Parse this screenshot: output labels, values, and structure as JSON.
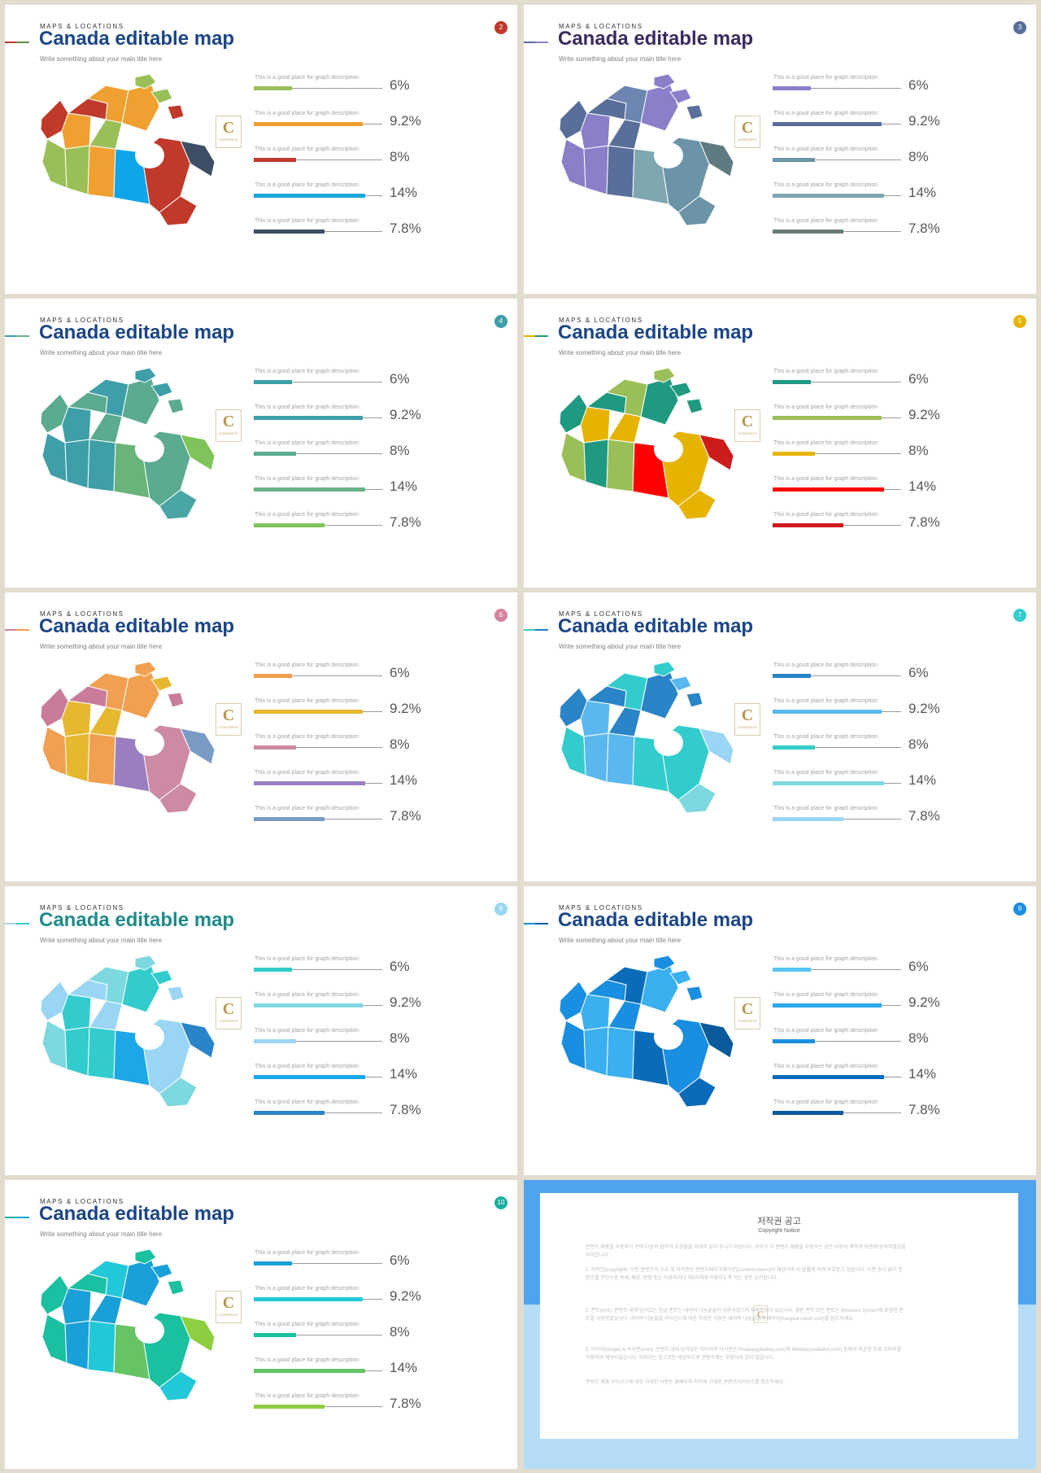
{
  "slides": [
    {
      "kicker": "MAPS & LOCATIONS",
      "title": "Canada editable map",
      "subtitle": "Write something about your main title here",
      "page": "2",
      "accent": "#c0392b",
      "accent2": "#5b8f3c",
      "title_color": "#1b4586",
      "logo_letter": "C",
      "logo_word": "CONTENTS",
      "region_colors": [
        "#c0392b",
        "#f0a030",
        "#9bbf58",
        "#9bbf58",
        "#c0392b",
        "#f0a030",
        "#9bbf58",
        "#f0a030",
        "#0ea5e9",
        "#c0392b",
        "#3e4e66",
        "#f0a030",
        "#c0392b"
      ],
      "bars": [
        {
          "desc": "This is a good place for graph description",
          "value": "6%",
          "fraction": 0.3,
          "color": "#9bbf58"
        },
        {
          "desc": "This is a good place for graph description",
          "value": "9.2%",
          "fraction": 0.85,
          "color": "#f0a030"
        },
        {
          "desc": "This is a good place for graph description",
          "value": "8%",
          "fraction": 0.33,
          "color": "#c0392b"
        },
        {
          "desc": "This is a good place for graph description",
          "value": "14%",
          "fraction": 0.87,
          "color": "#1ba7d8"
        },
        {
          "desc": "This is a good place for graph description",
          "value": "7.8%",
          "fraction": 0.55,
          "color": "#3e4e66"
        }
      ]
    },
    {
      "kicker": "MAPS & LOCATIONS",
      "title": "Canada editable map",
      "subtitle": "Write something about your main title here",
      "page": "3",
      "accent": "#5a6e9a",
      "accent2": "#8a7fc8",
      "title_color": "#3b2a5e",
      "logo_letter": "C",
      "logo_word": "CONTENTS",
      "region_colors": [
        "#5a6e9a",
        "#8a7fc8",
        "#8a7fc8",
        "#8a7fc8",
        "#5a6e9a",
        "#6c86b0",
        "#5a6e9a",
        "#5a6e9a",
        "#7fa7b0",
        "#6c94a8",
        "#5f7a80",
        "#8a7fc8",
        "#6c94a8"
      ],
      "bars": [
        {
          "desc": "This is a good place for graph description",
          "value": "6%",
          "fraction": 0.3,
          "color": "#8a7fc8"
        },
        {
          "desc": "This is a good place for graph description",
          "value": "9.2%",
          "fraction": 0.85,
          "color": "#5a6e9a"
        },
        {
          "desc": "This is a good place for graph description",
          "value": "8%",
          "fraction": 0.33,
          "color": "#6c94a8"
        },
        {
          "desc": "This is a good place for graph description",
          "value": "14%",
          "fraction": 0.87,
          "color": "#7fa7b0"
        },
        {
          "desc": "This is a good place for graph description",
          "value": "7.8%",
          "fraction": 0.55,
          "color": "#6a7a7a"
        }
      ]
    },
    {
      "kicker": "MAPS & LOCATIONS",
      "title": "Canada editable map",
      "subtitle": "Write something about your main title here",
      "page": "4",
      "accent": "#3e9fa8",
      "accent2": "#69b485",
      "title_color": "#1b4586",
      "logo_letter": "C",
      "logo_word": "CONTENTS",
      "region_colors": [
        "#5aab90",
        "#3e9fa8",
        "#3e9fa8",
        "#3e9fa8",
        "#5aab90",
        "#3e9fa8",
        "#5aab90",
        "#3e9fa8",
        "#6ab47a",
        "#5aab90",
        "#7ec45a",
        "#5aab90",
        "#4aa6a4"
      ],
      "bars": [
        {
          "desc": "This is a good place for graph description",
          "value": "6%",
          "fraction": 0.3,
          "color": "#3e9fa8"
        },
        {
          "desc": "This is a good place for graph description",
          "value": "9.2%",
          "fraction": 0.85,
          "color": "#3e9fa8"
        },
        {
          "desc": "This is a good place for graph description",
          "value": "8%",
          "fraction": 0.33,
          "color": "#5aab90"
        },
        {
          "desc": "This is a good place for graph description",
          "value": "14%",
          "fraction": 0.87,
          "color": "#69b485"
        },
        {
          "desc": "This is a good place for graph description",
          "value": "7.8%",
          "fraction": 0.55,
          "color": "#7ec45a"
        }
      ]
    },
    {
      "kicker": "MAPS & LOCATIONS",
      "title": "Canada editable map",
      "subtitle": "Write something about your main title here",
      "page": "5",
      "accent": "#e6b400",
      "accent2": "#1f9a80",
      "title_color": "#1b4586",
      "logo_letter": "C",
      "logo_word": "CONTENTS",
      "region_colors": [
        "#1f9a80",
        "#e6b400",
        "#9bbf58",
        "#1f9a80",
        "#1f9a80",
        "#9bbf58",
        "#e6b400",
        "#9bbf58",
        "#ff0000",
        "#e6b400",
        "#cc1c1c",
        "#1f9a80",
        "#e6b400"
      ],
      "bars": [
        {
          "desc": "This is a good place for graph description",
          "value": "6%",
          "fraction": 0.3,
          "color": "#1f9a80"
        },
        {
          "desc": "This is a good place for graph description",
          "value": "9.2%",
          "fraction": 0.85,
          "color": "#9bbf58"
        },
        {
          "desc": "This is a good place for graph description",
          "value": "8%",
          "fraction": 0.33,
          "color": "#e6b400"
        },
        {
          "desc": "This is a good place for graph description",
          "value": "14%",
          "fraction": 0.87,
          "color": "#ff0000"
        },
        {
          "desc": "This is a good place for graph description",
          "value": "7.8%",
          "fraction": 0.55,
          "color": "#cc1c1c"
        }
      ]
    },
    {
      "kicker": "MAPS & LOCATIONS",
      "title": "Canada editable map",
      "subtitle": "Write something about your main title here",
      "page": "6",
      "accent": "#d4849c",
      "accent2": "#f0a050",
      "title_color": "#1b4586",
      "logo_letter": "C",
      "logo_word": "CONTENTS",
      "region_colors": [
        "#c97c9a",
        "#e6b830",
        "#f0a050",
        "#e6b830",
        "#c97c9a",
        "#f0a050",
        "#e6b830",
        "#f0a050",
        "#9a7fc0",
        "#cc8aa4",
        "#7a9cc4",
        "#f0a050",
        "#cc8aa4"
      ],
      "bars": [
        {
          "desc": "This is a good place for graph description",
          "value": "6%",
          "fraction": 0.3,
          "color": "#f0a050"
        },
        {
          "desc": "This is a good place for graph description",
          "value": "9.2%",
          "fraction": 0.85,
          "color": "#e6b830"
        },
        {
          "desc": "This is a good place for graph description",
          "value": "8%",
          "fraction": 0.33,
          "color": "#cc8aa4"
        },
        {
          "desc": "This is a good place for graph description",
          "value": "14%",
          "fraction": 0.87,
          "color": "#9a7fc0"
        },
        {
          "desc": "This is a good place for graph description",
          "value": "7.8%",
          "fraction": 0.55,
          "color": "#7a9cc4"
        }
      ]
    },
    {
      "kicker": "MAPS & LOCATIONS",
      "title": "Canada editable map",
      "subtitle": "Write something about your main title here",
      "page": "7",
      "accent": "#33cccc",
      "accent2": "#1f7ec4",
      "title_color": "#1b4586",
      "logo_letter": "C",
      "logo_word": "CONTENTS",
      "region_colors": [
        "#2a84c8",
        "#5ab8ee",
        "#33cccc",
        "#5ab8ee",
        "#2a84c8",
        "#33cccc",
        "#2a84c8",
        "#5ab8ee",
        "#33cccc",
        "#33cccc",
        "#9ad6f4",
        "#2a84c8",
        "#7ed8e0"
      ],
      "bars": [
        {
          "desc": "This is a good place for graph description",
          "value": "6%",
          "fraction": 0.3,
          "color": "#2a84c8"
        },
        {
          "desc": "This is a good place for graph description",
          "value": "9.2%",
          "fraction": 0.85,
          "color": "#5ab8ee"
        },
        {
          "desc": "This is a good place for graph description",
          "value": "8%",
          "fraction": 0.33,
          "color": "#33cccc"
        },
        {
          "desc": "This is a good place for graph description",
          "value": "14%",
          "fraction": 0.87,
          "color": "#7ed8e0"
        },
        {
          "desc": "This is a good place for graph description",
          "value": "7.8%",
          "fraction": 0.55,
          "color": "#9ad6f4"
        }
      ]
    },
    {
      "kicker": "MAPS & LOCATIONS",
      "title": "Canada editable map",
      "subtitle": "Write something about your main title here",
      "page": "8",
      "accent": "#9ad6f4",
      "accent2": "#33cccc",
      "title_color": "#1f8a8a",
      "logo_letter": "C",
      "logo_word": "CONTENTS",
      "region_colors": [
        "#9ad6f4",
        "#33cccc",
        "#7ed8e0",
        "#33cccc",
        "#9ad6f4",
        "#7ed8e0",
        "#9ad6f4",
        "#33cccc",
        "#1ba7e8",
        "#9ad6f4",
        "#2a84c8",
        "#33cccc",
        "#7ed8e0"
      ],
      "bars": [
        {
          "desc": "This is a good place for graph description",
          "value": "6%",
          "fraction": 0.3,
          "color": "#33cccc"
        },
        {
          "desc": "This is a good place for graph description",
          "value": "9.2%",
          "fraction": 0.85,
          "color": "#7ed8e0"
        },
        {
          "desc": "This is a good place for graph description",
          "value": "8%",
          "fraction": 0.33,
          "color": "#9ad6f4"
        },
        {
          "desc": "This is a good place for graph description",
          "value": "14%",
          "fraction": 0.87,
          "color": "#1ba7e8"
        },
        {
          "desc": "This is a good place for graph description",
          "value": "7.8%",
          "fraction": 0.55,
          "color": "#2a84c8"
        }
      ]
    },
    {
      "kicker": "MAPS & LOCATIONS",
      "title": "Canada editable map",
      "subtitle": "Write something about your main title here",
      "page": "9",
      "accent": "#1a8ee0",
      "accent2": "#0a5a9c",
      "title_color": "#1b4586",
      "logo_letter": "C",
      "logo_word": "CONTENTS",
      "region_colors": [
        "#1a8ee0",
        "#3ab0f0",
        "#1a8ee0",
        "#3ab0f0",
        "#1a8ee0",
        "#0a6cb8",
        "#1a8ee0",
        "#3ab0f0",
        "#0a6cb8",
        "#1a8ee0",
        "#0a5a9c",
        "#3ab0f0",
        "#0a6cb8"
      ],
      "bars": [
        {
          "desc": "This is a good place for graph description",
          "value": "6%",
          "fraction": 0.3,
          "color": "#5ac4f4"
        },
        {
          "desc": "This is a good place for graph description",
          "value": "9.2%",
          "fraction": 0.85,
          "color": "#2aa8f0"
        },
        {
          "desc": "This is a good place for graph description",
          "value": "8%",
          "fraction": 0.33,
          "color": "#1a8ee0"
        },
        {
          "desc": "This is a good place for graph description",
          "value": "14%",
          "fraction": 0.87,
          "color": "#0a6cb8"
        },
        {
          "desc": "This is a good place for graph description",
          "value": "7.8%",
          "fraction": 0.55,
          "color": "#0a5a9c"
        }
      ]
    },
    {
      "kicker": "MAPS & LOCATIONS",
      "title": "Canada editable map",
      "subtitle": "Write something about your main title here",
      "page": "10",
      "accent": "#1ab0a0",
      "accent2": "#1aa0d8",
      "title_color": "#1b4586",
      "logo_letter": "C",
      "logo_word": "CONTENTS",
      "region_colors": [
        "#1ac0a0",
        "#1aa0d8",
        "#1ac0a0",
        "#1aa0d8",
        "#1ac0a0",
        "#22c8d8",
        "#1aa0d8",
        "#22c8d8",
        "#66c466",
        "#1ac0a0",
        "#8ccf40",
        "#1aa0d8",
        "#22c8d8"
      ],
      "bars": [
        {
          "desc": "This is a good place for graph description",
          "value": "6%",
          "fraction": 0.3,
          "color": "#1aa0d8"
        },
        {
          "desc": "This is a good place for graph description",
          "value": "9.2%",
          "fraction": 0.85,
          "color": "#22c8d8"
        },
        {
          "desc": "This is a good place for graph description",
          "value": "8%",
          "fraction": 0.33,
          "color": "#1ac0a0"
        },
        {
          "desc": "This is a good place for graph description",
          "value": "14%",
          "fraction": 0.87,
          "color": "#66c466"
        },
        {
          "desc": "This is a good place for graph description",
          "value": "7.8%",
          "fraction": 0.55,
          "color": "#8ccf40"
        }
      ]
    }
  ],
  "copyright": {
    "title": "저작권 공고",
    "subtitle": "Copyright Notice",
    "logo_letter": "C",
    "paragraphs": [
      "콘텐츠 제품을 사용하기 전에 다음의 협약과 조항들을 자세히 읽어 주시기 바랍니다. 귀하가 이 콘텐츠 제품을 사용하는 것은 사용자 계약과 보증에 동의하였음을 의미합니다.",
      "1. 저작권(copyright): 모든 콘텐츠의 소유 및 저작권은 콘텐츠에이크레이션(Contentstaenu)의 재산이며 이 법률에 의해 보호받고 있습니다. 서면 승낙 없이 콘텐츠를 무단으로 복제, 배포, 변형 또는 이용하거나 제3자에게 이용하도록 하는 것은 금지됩니다.",
      "2. 폰트(font): 콘텐츠 내에 담겨있는 한글 폰트는 네이버 나눔글꼴이 사용되었으며 재배포되지 않습니다. 영문 폰트 모든 폰트는 Windows System에 포함된 폰트를 사용하였습니다. 네이버 나눔글꼴 라이선스에 대한 자세한 사항은 네이버 나눔글꼴 홈페이지(hangeul.naver.com)를 참조하세요.",
      "3. 이미지(image) & 아이콘(icon): 콘텐츠 내에 담겨있는 이미지와 아이콘은 Pixabay(pixabay.com)와 Webalys(webalys.com) 등에서 제공한 무료 이미지를 이용하여 제작되었습니다. 이미지는 참고로만 제공되므로 콘텐츠에는 포함되어 있지 않습니다.",
      "콘텐츠 제품 라이선스에 대한 자세한 사항은 홈페이지 하단에 기재된 콘텐츠라이선스를 참조하세요."
    ]
  }
}
